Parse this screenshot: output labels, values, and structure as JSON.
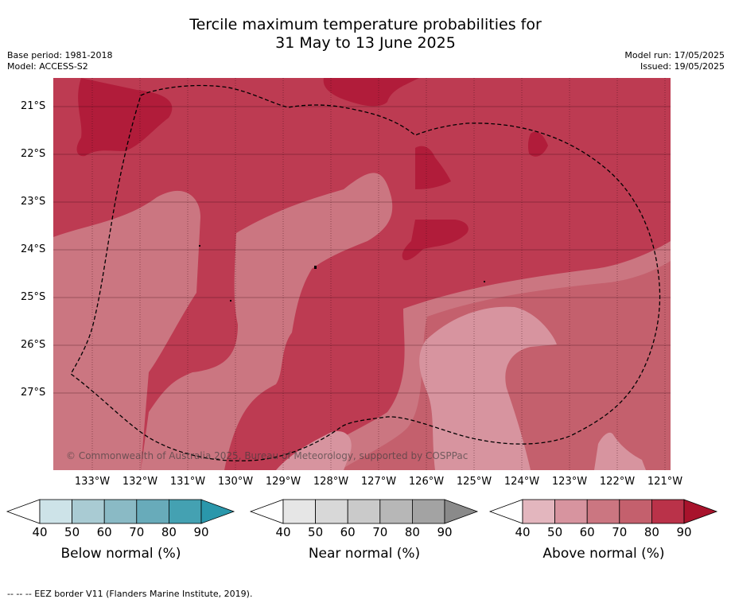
{
  "title_line1": "Tercile maximum temperature probabilities for",
  "title_line2": "31 May to 13 June 2025",
  "base_period": "Base period: 1981-2018",
  "model": "Model: ACCESS-S2",
  "model_run": "Model run: 17/05/2025",
  "issued": "Issued: 19/05/2025",
  "lat_labels": [
    "21°S",
    "22°S",
    "23°S",
    "24°S",
    "25°S",
    "26°S",
    "27°S"
  ],
  "lon_labels": [
    "133°W",
    "132°W",
    "131°W",
    "130°W",
    "129°W",
    "128°W",
    "127°W",
    "126°W",
    "125°W",
    "124°W",
    "123°W",
    "122°W",
    "121°W"
  ],
  "copyright": "© Commonwealth of Australia 2025, Bureau of Meteorology, supported by COSPPac",
  "colorbars": [
    {
      "label": "Below normal (%)",
      "ticks": [
        "40",
        "50",
        "60",
        "70",
        "80",
        "90"
      ],
      "colors": [
        "#ffffff",
        "#cde3e8",
        "#a9cbd3",
        "#8abac5",
        "#68abba",
        "#44a1b2",
        "#2a97ab"
      ]
    },
    {
      "label": "Near normal (%)",
      "ticks": [
        "40",
        "50",
        "60",
        "70",
        "80",
        "90"
      ],
      "colors": [
        "#ffffff",
        "#e6e6e6",
        "#d8d8d8",
        "#cacaca",
        "#b7b7b7",
        "#a3a3a3",
        "#8a8a8a"
      ]
    },
    {
      "label": "Above normal (%)",
      "ticks": [
        "40",
        "50",
        "60",
        "70",
        "80",
        "90"
      ],
      "colors": [
        "#ffffff",
        "#e3b6be",
        "#d7949f",
        "#cb7681",
        "#c4606d",
        "#ba3249",
        "#a8132c"
      ]
    }
  ],
  "footnote": "--  --  -- EEZ border V11 (Flanders Marine Institute, 2019).",
  "map_colors": {
    "c60": "#d7949f",
    "c70": "#cb7681",
    "c75": "#c4606d",
    "c80": "#bd3b52",
    "c90": "#b11c3a",
    "grid": "#3a0a14",
    "eez": "#000000"
  }
}
